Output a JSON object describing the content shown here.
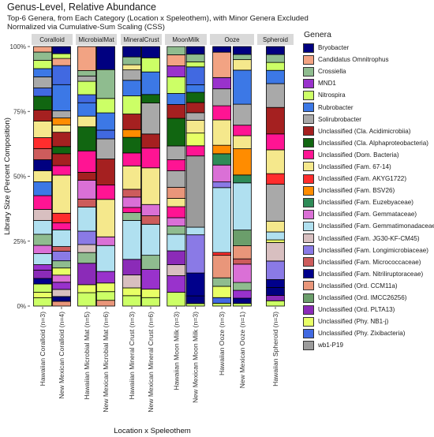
{
  "title": "Genus-Level, Relative Abundance",
  "subtitle_line1": "Top-6 Genera, from Each Category (Location x Speleothem), with Minor Genera Excluded",
  "subtitle_line2": "Normalized via Cumulative-Sum Scaling (CSS)",
  "chart_data": {
    "type": "bar",
    "stacked": true,
    "faceted": true,
    "xlabel": "Location x Speleothem",
    "ylabel": "Library Size (Percent Composition)",
    "ylim": [
      0,
      100
    ],
    "yticks": [
      "0%",
      "25%",
      "50%",
      "75%",
      "100%"
    ],
    "legend_title": "Genera",
    "legend_position": "right",
    "genera": [
      {
        "name": "Bryobacter",
        "color": "#000080"
      },
      {
        "name": "Candidatus Omnitrophus",
        "color": "#f2a383"
      },
      {
        "name": "Crossiella",
        "color": "#8fbc8f"
      },
      {
        "name": "MND1",
        "color": "#9932cc"
      },
      {
        "name": "Nitrospira",
        "color": "#ccff66"
      },
      {
        "name": "Rubrobacter",
        "color": "#3c78e6"
      },
      {
        "name": "Solirubrobacter",
        "color": "#a9a9a9"
      },
      {
        "name": "Unclassified (Cla. Acidimicrobiia)",
        "color": "#a52020"
      },
      {
        "name": "Unclassified (Cla. Alphaproteobacteria)",
        "color": "#116611"
      },
      {
        "name": "Unclassified (Dom. Bacteria)",
        "color": "#ff1493"
      },
      {
        "name": "Unclassified (Fam. 67-14)",
        "color": "#f5e88c"
      },
      {
        "name": "Unclassified (Fam. AKYG1722)",
        "color": "#ff2d2d"
      },
      {
        "name": "Unclassified (Fam. BSV26)",
        "color": "#ff8c00"
      },
      {
        "name": "Unclassified (Fam. Euzebyaceae)",
        "color": "#2e8b57"
      },
      {
        "name": "Unclassified (Fam. Gemmataceae)",
        "color": "#da70d6"
      },
      {
        "name": "Unclassified (Fam. Gemmatimonadaceae)",
        "color": "#b0e0f0"
      },
      {
        "name": "Unclassified (Fam. JG30-KF-CM45)",
        "color": "#d8bfc0"
      },
      {
        "name": "Unclassified (Fam. Longimicrobiaceae)",
        "color": "#8a7ae6"
      },
      {
        "name": "Unclassified (Fam. Micrococcaceae)",
        "color": "#cd5c5c"
      },
      {
        "name": "Unclassified (Fam. Nitriliruptoraceae)",
        "color": "#00008b"
      },
      {
        "name": "Unclassified (Ord. CCM11a)",
        "color": "#e9967a"
      },
      {
        "name": "Unclassified (Ord. IMCC26256)",
        "color": "#6b9e6b"
      },
      {
        "name": "Unclassified (Ord. PLTA13)",
        "color": "#8b2bb8"
      },
      {
        "name": "Unclassified (Phy. NB1-j)",
        "color": "#e8ff66"
      },
      {
        "name": "Unclassified (Phy. Zixibacteria)",
        "color": "#4169e1"
      },
      {
        "name": "wb1-P19",
        "color": "#9b9b9b"
      }
    ],
    "facets": [
      {
        "strip": "Coralloid",
        "bars": [
          {
            "label": "Hawaiian Coralloid (n=3)",
            "segments": [
              [
                4,
                3
              ],
              [
                23,
                2
              ],
              [
                4,
                3
              ],
              [
                19,
                2
              ],
              [
                22,
                3
              ],
              [
                3,
                2
              ],
              [
                15,
                4
              ],
              [
                14,
                3
              ],
              [
                2,
                4
              ],
              [
                15,
                5
              ],
              [
                16,
                4
              ],
              [
                9,
                5
              ],
              [
                5,
                5
              ],
              [
                10,
                4
              ],
              [
                0,
                4
              ],
              [
                18,
                4
              ],
              [
                11,
                4
              ],
              [
                10,
                6
              ],
              [
                7,
                4
              ],
              [
                8,
                5
              ],
              [
                24,
                3
              ],
              [
                6,
                4
              ],
              [
                5,
                3
              ],
              [
                4,
                3
              ],
              [
                2,
                3
              ],
              [
                1,
                2
              ]
            ]
          },
          {
            "label": "New Mexican Coralloid (n=4)",
            "segments": [
              [
                20,
                2
              ],
              [
                0,
                2
              ],
              [
                16,
                3
              ],
              [
                3,
                3
              ],
              [
                14,
                3
              ],
              [
                23,
                3
              ],
              [
                2,
                3
              ],
              [
                17,
                4
              ],
              [
                18,
                2
              ],
              [
                15,
                7
              ],
              [
                9,
                3
              ],
              [
                11,
                4
              ],
              [
                10,
                16
              ],
              [
                9,
                4
              ],
              [
                7,
                5
              ],
              [
                8,
                3
              ],
              [
                7,
                6
              ],
              [
                10,
                3
              ],
              [
                12,
                3
              ],
              [
                6,
                3
              ],
              [
                5,
                11
              ],
              [
                24,
                8
              ],
              [
                1,
                3
              ],
              [
                4,
                2
              ],
              [
                0,
                3
              ]
            ]
          }
        ]
      },
      {
        "strip": "MicrobialMat",
        "bars": [
          {
            "label": "Hawaiian Microbial Mat (n=5)",
            "segments": [
              [
                4,
                5
              ],
              [
                23,
                3
              ],
              [
                22,
                8
              ],
              [
                2,
                4
              ],
              [
                16,
                3
              ],
              [
                17,
                5
              ],
              [
                15,
                9
              ],
              [
                18,
                3
              ],
              [
                14,
                7
              ],
              [
                7,
                3
              ],
              [
                9,
                8
              ],
              [
                8,
                9
              ],
              [
                10,
                4
              ],
              [
                5,
                5
              ],
              [
                24,
                3
              ],
              [
                4,
                5
              ],
              [
                6,
                2
              ],
              [
                2,
                2
              ],
              [
                1,
                9
              ]
            ]
          },
          {
            "label": "New Mexican Microbial Mat (n=6)",
            "segments": [
              [
                20,
                2
              ],
              [
                4,
                3
              ],
              [
                23,
                3
              ],
              [
                3,
                4
              ],
              [
                15,
                9
              ],
              [
                14,
                3
              ],
              [
                10,
                13
              ],
              [
                9,
                5
              ],
              [
                7,
                9
              ],
              [
                6,
                7
              ],
              [
                24,
                3
              ],
              [
                5,
                6
              ],
              [
                4,
                5
              ],
              [
                2,
                10
              ],
              [
                0,
                8
              ]
            ]
          }
        ]
      },
      {
        "strip": "MineralCrust",
        "bars": [
          {
            "label": "Hawaiian Mineral Crust (n=3)",
            "segments": [
              [
                4,
                4
              ],
              [
                23,
                3
              ],
              [
                16,
                5
              ],
              [
                22,
                6
              ],
              [
                15,
                15
              ],
              [
                2,
                3
              ],
              [
                9,
                2
              ],
              [
                14,
                4
              ],
              [
                18,
                3
              ],
              [
                10,
                9
              ],
              [
                9,
                5
              ],
              [
                8,
                6
              ],
              [
                12,
                3
              ],
              [
                7,
                6
              ],
              [
                4,
                7
              ],
              [
                5,
                6
              ],
              [
                6,
                4
              ],
              [
                10,
                2
              ],
              [
                2,
                3
              ],
              [
                0,
                4
              ]
            ]
          },
          {
            "label": "New Mexican Mineral Crust (n=6)",
            "segments": [
              [
                4,
                3
              ],
              [
                23,
                3
              ],
              [
                3,
                7
              ],
              [
                2,
                5
              ],
              [
                15,
                11
              ],
              [
                18,
                3
              ],
              [
                14,
                4
              ],
              [
                10,
                13
              ],
              [
                9,
                7
              ],
              [
                7,
                5
              ],
              [
                6,
                11
              ],
              [
                8,
                3
              ],
              [
                5,
                8
              ],
              [
                4,
                5
              ],
              [
                0,
                4
              ]
            ]
          }
        ]
      },
      {
        "strip": "MoonMilk",
        "bars": [
          {
            "label": "Hawaiian Moon Milk (n=3)",
            "segments": [
              [
                4,
                5
              ],
              [
                3,
                6
              ],
              [
                16,
                4
              ],
              [
                22,
                5
              ],
              [
                15,
                6
              ],
              [
                2,
                3
              ],
              [
                14,
                3
              ],
              [
                9,
                4
              ],
              [
                10,
                3
              ],
              [
                20,
                4
              ],
              [
                6,
                6
              ],
              [
                9,
                4
              ],
              [
                6,
                5
              ],
              [
                8,
                10
              ],
              [
                7,
                5
              ],
              [
                5,
                4
              ],
              [
                4,
                6
              ],
              [
                3,
                4
              ],
              [
                1,
                4
              ],
              [
                2,
                3
              ]
            ]
          },
          {
            "label": "New Mexican Moon Milk (n=3)",
            "segments": [
              [
                4,
                1
              ],
              [
                0,
                3
              ],
              [
                19,
                9
              ],
              [
                17,
                15
              ],
              [
                15,
                3
              ],
              [
                25,
                28
              ],
              [
                9,
                4
              ],
              [
                23,
                5
              ],
              [
                10,
                5
              ],
              [
                6,
                3
              ],
              [
                7,
                4
              ],
              [
                8,
                4
              ],
              [
                5,
                3
              ],
              [
                24,
                7
              ],
              [
                4,
                2
              ],
              [
                2,
                3
              ],
              [
                0,
                3
              ]
            ]
          }
        ]
      },
      {
        "strip": "Ooze",
        "bars": [
          {
            "label": "Hawaiian Ooze (n=3)",
            "segments": [
              [
                4,
                1
              ],
              [
                24,
                2
              ],
              [
                23,
                4
              ],
              [
                2,
                3
              ],
              [
                20,
                8
              ],
              [
                11,
                1
              ],
              [
                15,
                23
              ],
              [
                17,
                2
              ],
              [
                14,
                6
              ],
              [
                13,
                4
              ],
              [
                12,
                3
              ],
              [
                10,
                9
              ],
              [
                9,
                5
              ],
              [
                6,
                6
              ],
              [
                3,
                4
              ],
              [
                1,
                9
              ],
              [
                0,
                2
              ]
            ]
          },
          {
            "label": "New Mexican Ooze (n=1)",
            "segments": [
              [
                4,
                1
              ],
              [
                0,
                2
              ],
              [
                3,
                3
              ],
              [
                2,
                3
              ],
              [
                14,
                7
              ],
              [
                18,
                2
              ],
              [
                20,
                5
              ],
              [
                21,
                6
              ],
              [
                15,
                18
              ],
              [
                13,
                3
              ],
              [
                12,
                10
              ],
              [
                10,
                5
              ],
              [
                9,
                4
              ],
              [
                6,
                8
              ],
              [
                5,
                13
              ],
              [
                10,
                4
              ],
              [
                2,
                2
              ],
              [
                0,
                3
              ]
            ]
          }
        ]
      },
      {
        "strip": "Spheroid",
        "bars": [
          {
            "label": "Hawaiian Spheroid (n=3)",
            "segments": [
              [
                4,
                2
              ],
              [
                22,
                2
              ],
              [
                0,
                3
              ],
              [
                19,
                3
              ],
              [
                17,
                7
              ],
              [
                16,
                7
              ],
              [
                23,
                1
              ],
              [
                15,
                3
              ],
              [
                10,
                4
              ],
              [
                6,
                14
              ],
              [
                11,
                4
              ],
              [
                10,
                9
              ],
              [
                9,
                6
              ],
              [
                7,
                10
              ],
              [
                6,
                9
              ],
              [
                5,
                5
              ],
              [
                4,
                3
              ],
              [
                2,
                3
              ],
              [
                0,
                3
              ]
            ]
          }
        ]
      }
    ]
  }
}
